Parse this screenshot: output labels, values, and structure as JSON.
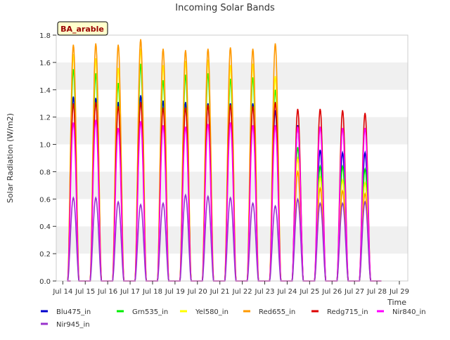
{
  "chart_data": {
    "type": "line",
    "title": "Incoming Solar Bands",
    "xlabel": "Time",
    "ylabel": "Solar Radiation (W/m2)",
    "ylim": [
      0.0,
      1.8
    ],
    "yticks": [
      "0.0",
      "0.2",
      "0.4",
      "0.6",
      "0.8",
      "1.0",
      "1.2",
      "1.4",
      "1.6",
      "1.8"
    ],
    "xlim": [
      "Jul 14",
      "Jul 29"
    ],
    "xticks": [
      "Jul 14",
      "Jul 15",
      "Jul 16",
      "Jul 17",
      "Jul 18",
      "Jul 19",
      "Jul 20",
      "Jul 21",
      "Jul 22",
      "Jul 23",
      "Jul 24",
      "Jul 25",
      "Jul 26",
      "Jul 27",
      "Jul 28",
      "Jul 29"
    ],
    "grid": "horizontal bands",
    "site_label": "BA_arable",
    "legend_position": "bottom",
    "x_unit": "day",
    "day_starts": [
      "Jul 14",
      "Jul 15",
      "Jul 16",
      "Jul 17",
      "Jul 18",
      "Jul 19",
      "Jul 20",
      "Jul 21",
      "Jul 22",
      "Jul 23",
      "Jul 24",
      "Jul 25",
      "Jul 26",
      "Jul 27"
    ],
    "series": [
      {
        "name": "Blu475_in",
        "color": "#0000cc",
        "daily_peak": [
          1.35,
          1.34,
          1.31,
          1.36,
          1.32,
          1.31,
          1.3,
          1.3,
          1.3,
          1.25,
          1.14,
          0.96,
          0.94,
          0.94
        ]
      },
      {
        "name": "Grn535_in",
        "color": "#00ee00",
        "daily_peak": [
          1.55,
          1.52,
          1.45,
          1.59,
          1.47,
          1.51,
          1.52,
          1.48,
          1.49,
          1.4,
          0.98,
          0.84,
          0.84,
          0.82
        ]
      },
      {
        "name": "Yel580_in",
        "color": "#ffff00",
        "daily_peak": [
          1.66,
          1.63,
          1.56,
          1.7,
          1.58,
          1.61,
          1.62,
          1.58,
          1.59,
          1.5,
          0.9,
          0.76,
          0.74,
          0.72
        ]
      },
      {
        "name": "Red655_in",
        "color": "#ff9900",
        "daily_peak": [
          1.73,
          1.74,
          1.73,
          1.77,
          1.7,
          1.69,
          1.7,
          1.71,
          1.7,
          1.74,
          0.8,
          0.68,
          0.66,
          0.64
        ]
      },
      {
        "name": "Redg715_in",
        "color": "#dd0000",
        "daily_peak": [
          1.3,
          1.31,
          1.28,
          1.31,
          1.27,
          1.27,
          1.29,
          1.29,
          1.28,
          1.31,
          1.26,
          1.26,
          1.25,
          1.23
        ]
      },
      {
        "name": "Nir840_in",
        "color": "#ff00ff",
        "daily_peak": [
          1.16,
          1.18,
          1.12,
          1.17,
          1.14,
          1.13,
          1.15,
          1.16,
          1.14,
          1.14,
          1.13,
          1.13,
          1.12,
          1.12
        ]
      },
      {
        "name": "Nir945_in",
        "color": "#9933cc",
        "daily_peak": [
          0.61,
          0.61,
          0.58,
          0.56,
          0.57,
          0.63,
          0.62,
          0.61,
          0.57,
          0.55,
          0.6,
          0.57,
          0.57,
          0.58
        ]
      }
    ]
  }
}
